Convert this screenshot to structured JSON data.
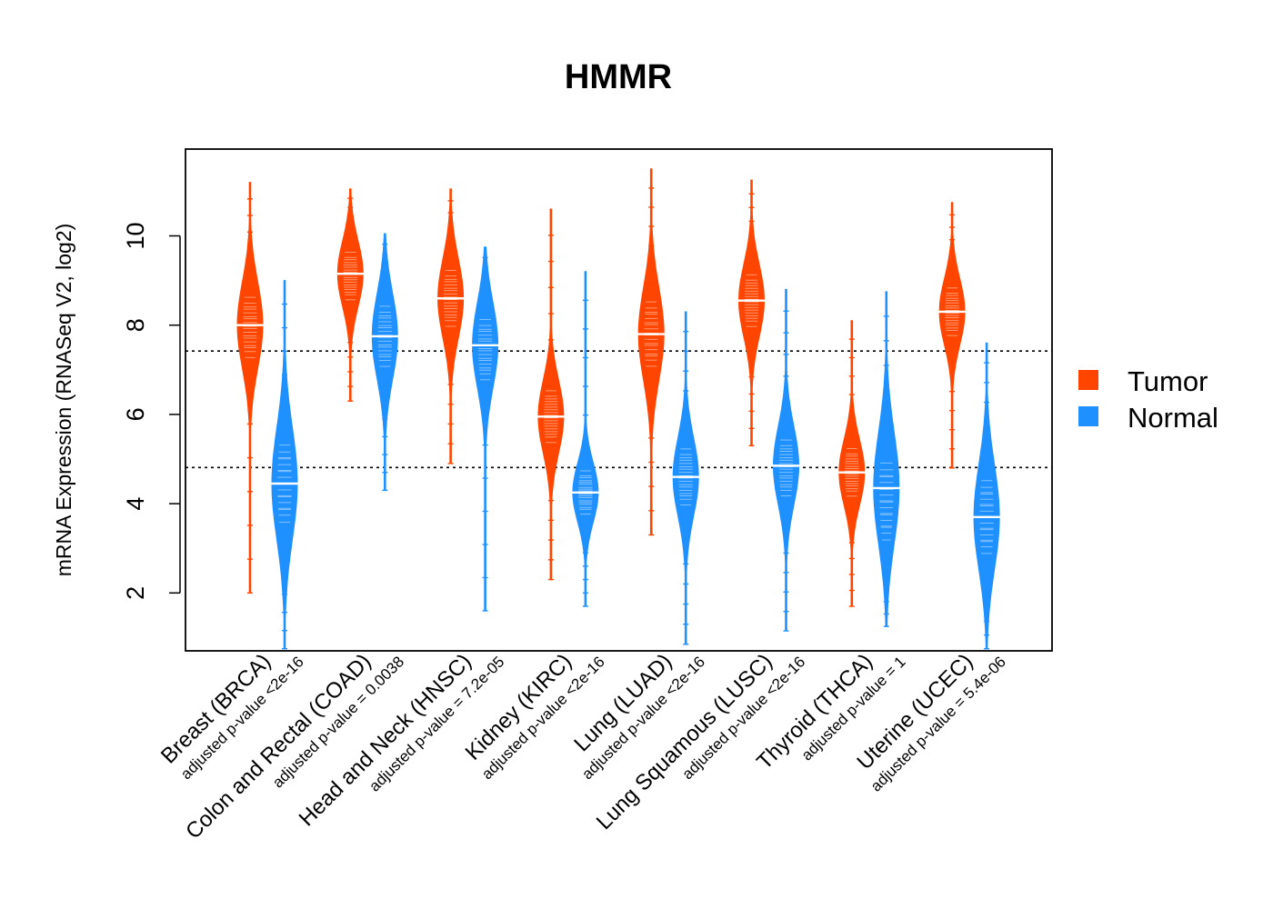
{
  "chart_data": {
    "type": "violin",
    "title": "HMMR",
    "ylabel": "mRNA Expression (RNASeq V2, log2)",
    "xlabel": "",
    "ylim": [
      0.75,
      12
    ],
    "yticks": [
      2,
      4,
      6,
      8,
      10
    ],
    "reference_lines": [
      7.42,
      4.81
    ],
    "legend": {
      "position": "right",
      "entries": [
        {
          "name": "Tumor",
          "color": "#FF4500"
        },
        {
          "name": "Normal",
          "color": "#1E90FF"
        }
      ]
    },
    "categories": [
      {
        "label": "Breast (BRCA)",
        "pvalue": "adjusted p-value <2e-16",
        "tumor": {
          "median": 8.0,
          "min": 2.0,
          "max": 11.2,
          "q1": 7.3,
          "q3": 8.6
        },
        "normal": {
          "median": 4.45,
          "min": 0.75,
          "max": 9.0,
          "q1": 3.6,
          "q3": 5.3
        }
      },
      {
        "label": "Colon and Rectal (COAD)",
        "pvalue": "adjusted p-value = 0.0038",
        "tumor": {
          "median": 9.15,
          "min": 6.3,
          "max": 11.05,
          "q1": 8.6,
          "q3": 9.6
        },
        "normal": {
          "median": 7.75,
          "min": 4.3,
          "max": 10.05,
          "q1": 7.1,
          "q3": 8.4
        }
      },
      {
        "label": "Head and Neck (HNSC)",
        "pvalue": "adjusted p-value = 7.2e-05",
        "tumor": {
          "median": 8.6,
          "min": 4.9,
          "max": 11.05,
          "q1": 8.0,
          "q3": 9.2
        },
        "normal": {
          "median": 7.55,
          "min": 1.6,
          "max": 9.75,
          "q1": 6.8,
          "q3": 8.1
        }
      },
      {
        "label": "Kidney (KIRC)",
        "pvalue": "adjusted p-value <2e-16",
        "tumor": {
          "median": 5.95,
          "min": 2.3,
          "max": 10.6,
          "q1": 5.4,
          "q3": 6.5
        },
        "normal": {
          "median": 4.25,
          "min": 1.7,
          "max": 9.2,
          "q1": 3.8,
          "q3": 4.7
        }
      },
      {
        "label": "Lung (LUAD)",
        "pvalue": "adjusted p-value <2e-16",
        "tumor": {
          "median": 7.8,
          "min": 3.3,
          "max": 11.5,
          "q1": 7.1,
          "q3": 8.5
        },
        "normal": {
          "median": 4.6,
          "min": 0.85,
          "max": 8.3,
          "q1": 4.0,
          "q3": 5.2
        }
      },
      {
        "label": "Lung Squamous (LUSC)",
        "pvalue": "adjusted p-value <2e-16",
        "tumor": {
          "median": 8.55,
          "min": 5.3,
          "max": 11.25,
          "q1": 8.0,
          "q3": 9.1
        },
        "normal": {
          "median": 4.85,
          "min": 1.15,
          "max": 8.8,
          "q1": 4.2,
          "q3": 5.4
        }
      },
      {
        "label": "Thyroid (THCA)",
        "pvalue": "adjusted p-value = 1",
        "tumor": {
          "median": 4.7,
          "min": 1.7,
          "max": 8.1,
          "q1": 4.2,
          "q3": 5.2
        },
        "normal": {
          "median": 4.35,
          "min": 1.25,
          "max": 8.75,
          "q1": 3.2,
          "q3": 4.9
        }
      },
      {
        "label": "Uterine (UCEC)",
        "pvalue": "adjusted p-value = 5.4e-06",
        "tumor": {
          "median": 8.3,
          "min": 4.8,
          "max": 10.75,
          "q1": 7.8,
          "q3": 8.8
        },
        "normal": {
          "median": 3.7,
          "min": 0.75,
          "max": 7.6,
          "q1": 2.9,
          "q3": 4.5
        }
      }
    ]
  }
}
